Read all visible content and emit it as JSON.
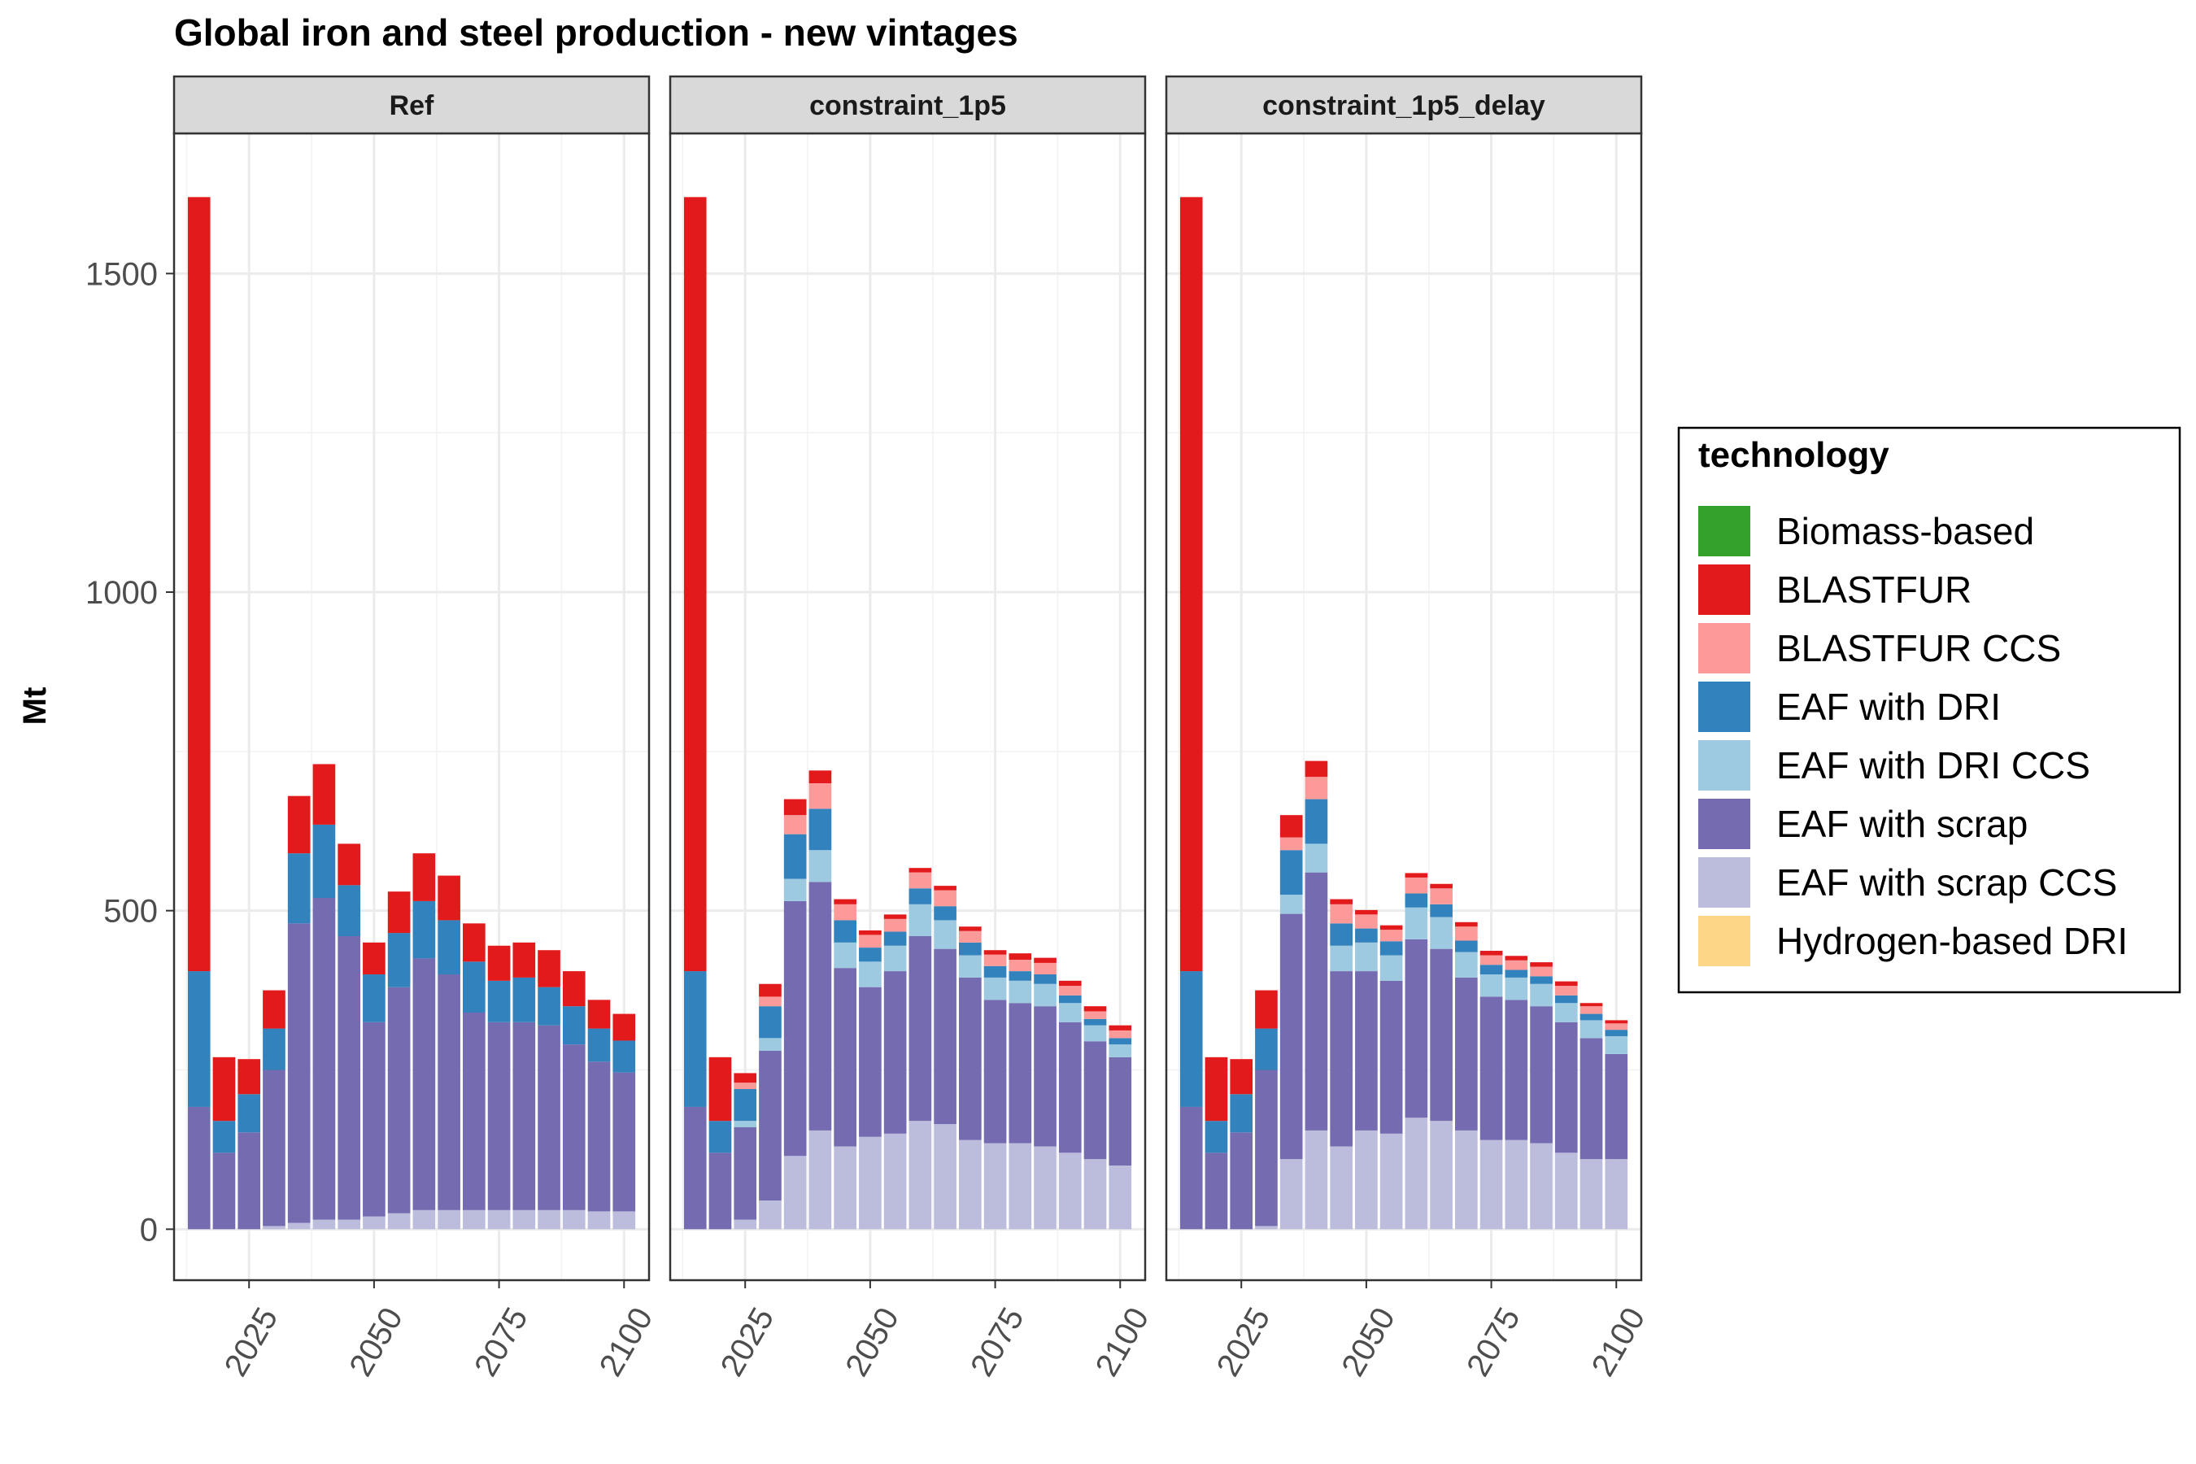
{
  "chart_data": {
    "type": "bar",
    "stacked": true,
    "title": "Global iron and steel production - new vintages",
    "ylabel": "Mt",
    "xlabel": "",
    "ylim": [
      -80,
      1720
    ],
    "y_ticks": [
      0,
      500,
      1000,
      1500
    ],
    "x_ticks": [
      2025,
      2050,
      2075,
      2100
    ],
    "xlim": [
      2010,
      2105
    ],
    "grid": true,
    "legend_position": "right",
    "legend_title": "technology",
    "x": [
      2015,
      2020,
      2025,
      2030,
      2035,
      2040,
      2045,
      2050,
      2055,
      2060,
      2065,
      2070,
      2075,
      2080,
      2085,
      2090,
      2095,
      2100
    ],
    "series_order": [
      "Hydrogen-based DRI",
      "EAF with scrap CCS",
      "EAF with scrap",
      "EAF with DRI CCS",
      "EAF with DRI",
      "BLASTFUR CCS",
      "BLASTFUR",
      "Biomass-based"
    ],
    "legend": [
      {
        "name": "Biomass-based",
        "color": "#33a02c"
      },
      {
        "name": "BLASTFUR",
        "color": "#e31a1c"
      },
      {
        "name": "BLASTFUR CCS",
        "color": "#fb9a99"
      },
      {
        "name": "EAF with DRI",
        "color": "#3182bd"
      },
      {
        "name": "EAF with DRI CCS",
        "color": "#9ecae1"
      },
      {
        "name": "EAF with scrap",
        "color": "#756bb1"
      },
      {
        "name": "EAF with scrap CCS",
        "color": "#bcbddc"
      },
      {
        "name": "Hydrogen-based DRI",
        "color": "#fdd688"
      }
    ],
    "panels": [
      {
        "name": "Ref",
        "series": [
          {
            "name": "Hydrogen-based DRI",
            "values": [
              0,
              0,
              0,
              0,
              0,
              0,
              0,
              0,
              0,
              0,
              0,
              0,
              0,
              0,
              0,
              0,
              0,
              0
            ]
          },
          {
            "name": "EAF with scrap CCS",
            "values": [
              0,
              0,
              0,
              5,
              10,
              15,
              15,
              20,
              25,
              30,
              30,
              30,
              30,
              30,
              30,
              30,
              28,
              28
            ]
          },
          {
            "name": "EAF with scrap",
            "values": [
              192,
              120,
              152,
              245,
              470,
              505,
              445,
              305,
              355,
              395,
              370,
              310,
              295,
              295,
              290,
              260,
              235,
              218
            ]
          },
          {
            "name": "EAF with DRI CCS",
            "values": [
              0,
              0,
              0,
              0,
              0,
              0,
              0,
              0,
              0,
              0,
              0,
              0,
              0,
              0,
              0,
              0,
              0,
              0
            ]
          },
          {
            "name": "EAF with DRI",
            "values": [
              213,
              50,
              60,
              65,
              110,
              115,
              80,
              75,
              85,
              90,
              85,
              80,
              65,
              70,
              60,
              60,
              52,
              50
            ]
          },
          {
            "name": "BLASTFUR CCS",
            "values": [
              0,
              0,
              0,
              0,
              0,
              0,
              0,
              0,
              0,
              0,
              0,
              0,
              0,
              0,
              0,
              0,
              0,
              0
            ]
          },
          {
            "name": "BLASTFUR",
            "values": [
              1215,
              100,
              55,
              60,
              90,
              95,
              65,
              50,
              65,
              75,
              70,
              60,
              55,
              55,
              58,
              55,
              45,
              42
            ]
          },
          {
            "name": "Biomass-based",
            "values": [
              0,
              0,
              0,
              0,
              0,
              0,
              0,
              0,
              0,
              0,
              0,
              0,
              0,
              0,
              0,
              0,
              0,
              0
            ]
          }
        ]
      },
      {
        "name": "constraint_1p5",
        "series": [
          {
            "name": "Hydrogen-based DRI",
            "values": [
              0,
              0,
              0,
              0,
              0,
              0,
              0,
              0,
              0,
              0,
              0,
              0,
              0,
              0,
              0,
              0,
              0,
              0
            ]
          },
          {
            "name": "EAF with scrap CCS",
            "values": [
              0,
              0,
              15,
              45,
              115,
              155,
              130,
              145,
              150,
              170,
              165,
              140,
              135,
              135,
              130,
              120,
              110,
              100
            ]
          },
          {
            "name": "EAF with scrap",
            "values": [
              192,
              120,
              145,
              235,
              400,
              390,
              280,
              235,
              255,
              290,
              275,
              255,
              225,
              220,
              220,
              205,
              185,
              170
            ]
          },
          {
            "name": "EAF with DRI CCS",
            "values": [
              0,
              0,
              10,
              20,
              35,
              50,
              40,
              40,
              40,
              50,
              45,
              35,
              35,
              35,
              35,
              30,
              25,
              20
            ]
          },
          {
            "name": "EAF with DRI",
            "values": [
              213,
              50,
              50,
              50,
              70,
              65,
              35,
              22,
              22,
              25,
              22,
              20,
              18,
              15,
              15,
              12,
              10,
              10
            ]
          },
          {
            "name": "BLASTFUR CCS",
            "values": [
              0,
              0,
              10,
              15,
              30,
              40,
              25,
              20,
              20,
              25,
              25,
              18,
              18,
              18,
              18,
              15,
              12,
              12
            ]
          },
          {
            "name": "BLASTFUR",
            "values": [
              1215,
              100,
              15,
              20,
              25,
              20,
              8,
              7,
              7,
              7,
              7,
              7,
              7,
              10,
              8,
              8,
              8,
              8
            ]
          },
          {
            "name": "Biomass-based",
            "values": [
              0,
              0,
              0,
              0,
              0,
              0,
              0,
              0,
              0,
              0,
              0,
              0,
              0,
              0,
              0,
              0,
              0,
              0
            ]
          }
        ]
      },
      {
        "name": "constraint_1p5_delay",
        "series": [
          {
            "name": "Hydrogen-based DRI",
            "values": [
              0,
              0,
              0,
              0,
              0,
              0,
              0,
              0,
              0,
              0,
              0,
              0,
              0,
              0,
              0,
              0,
              0,
              0
            ]
          },
          {
            "name": "EAF with scrap CCS",
            "values": [
              0,
              0,
              0,
              5,
              110,
              155,
              130,
              155,
              150,
              175,
              170,
              155,
              140,
              140,
              135,
              120,
              110,
              110
            ]
          },
          {
            "name": "EAF with scrap",
            "values": [
              192,
              120,
              152,
              245,
              385,
              405,
              275,
              250,
              240,
              280,
              270,
              240,
              225,
              220,
              215,
              205,
              190,
              165
            ]
          },
          {
            "name": "EAF with DRI CCS",
            "values": [
              0,
              0,
              0,
              0,
              30,
              45,
              40,
              45,
              40,
              50,
              50,
              40,
              35,
              35,
              35,
              30,
              28,
              28
            ]
          },
          {
            "name": "EAF with DRI",
            "values": [
              213,
              50,
              60,
              65,
              70,
              70,
              35,
              22,
              22,
              22,
              20,
              18,
              15,
              12,
              12,
              12,
              10,
              10
            ]
          },
          {
            "name": "BLASTFUR CCS",
            "values": [
              0,
              0,
              0,
              0,
              20,
              35,
              30,
              22,
              18,
              25,
              25,
              22,
              15,
              15,
              15,
              15,
              12,
              10
            ]
          },
          {
            "name": "BLASTFUR",
            "values": [
              1215,
              100,
              55,
              60,
              35,
              25,
              8,
              7,
              7,
              7,
              7,
              7,
              7,
              7,
              7,
              7,
              5,
              5
            ]
          },
          {
            "name": "Biomass-based",
            "values": [
              0,
              0,
              0,
              0,
              0,
              0,
              0,
              0,
              0,
              0,
              0,
              0,
              0,
              0,
              0,
              0,
              0,
              0
            ]
          }
        ]
      }
    ]
  }
}
